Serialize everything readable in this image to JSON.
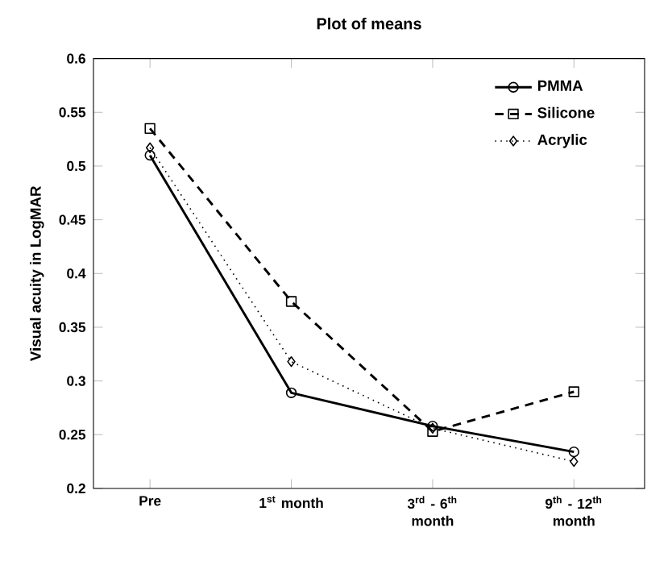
{
  "chart_data": {
    "type": "line",
    "title": "Plot  of  means",
    "ylabel": "Visual  acuity  in  LogMAR",
    "categories": [
      "Pre",
      "1$^{st}$ month",
      "3$^{rd}$ - 6$^{th}$ month",
      "9$^{th}$ - 12$^{th}$ month"
    ],
    "series": [
      {
        "name": "PMMA",
        "color": "#000000",
        "values": [
          0.51,
          0.289,
          0.258,
          0.234
        ],
        "marker": "circle",
        "line_style": "solid"
      },
      {
        "name": "Silicone",
        "color": "#000000",
        "values": [
          0.535,
          0.374,
          0.253,
          0.29
        ],
        "marker": "square",
        "line_style": "dashed"
      },
      {
        "name": "Acrylic",
        "color": "#000000",
        "values": [
          0.517,
          0.318,
          0.256,
          0.225
        ],
        "marker": "diamond",
        "line_style": "dotted"
      }
    ],
    "ylim": [
      0.2,
      0.6
    ],
    "yticks": [
      0.2,
      0.25,
      0.3,
      0.35,
      0.4,
      0.45,
      0.5,
      0.55,
      0.6
    ],
    "legend": "top right",
    "grid": false
  }
}
